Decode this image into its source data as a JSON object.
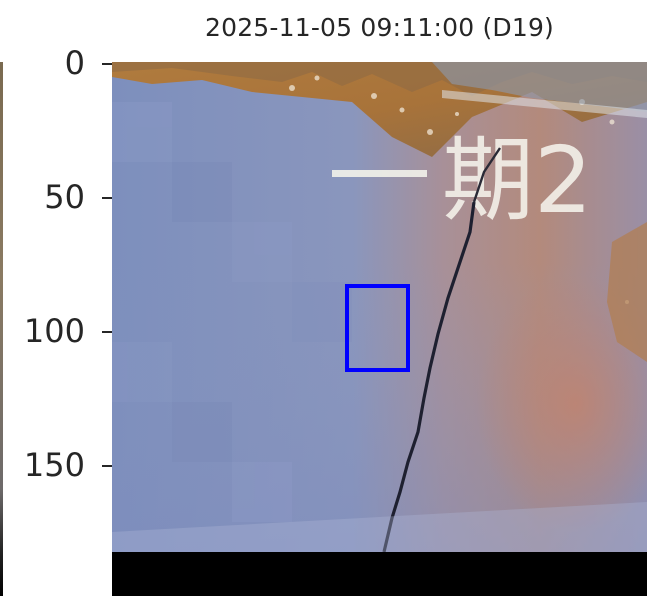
{
  "figure": {
    "title": "2025-11-05 09:11:00 (D19)",
    "y_ticks": [
      "0",
      "50",
      "100",
      "150"
    ],
    "overlay_text": "期2",
    "highlight_box_color": "#0000ff"
  }
}
